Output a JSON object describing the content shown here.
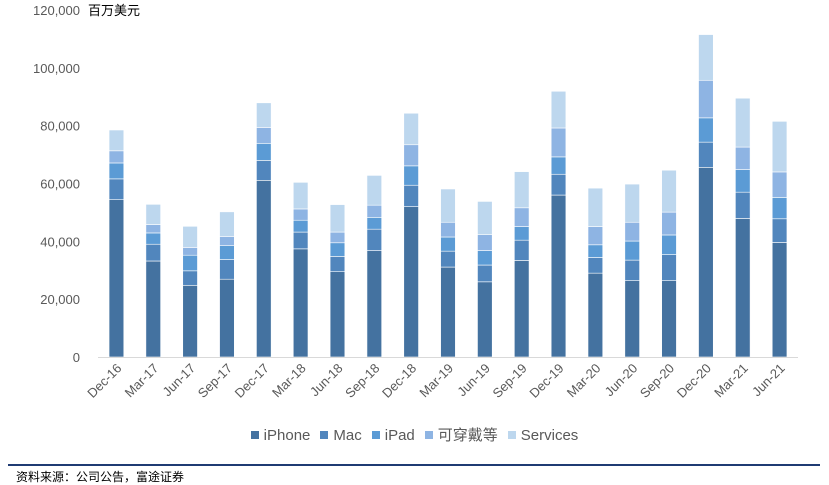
{
  "chart_data": {
    "type": "bar",
    "stacked": true,
    "unit": "百万美元",
    "categories": [
      "Dec-16",
      "Mar-17",
      "Jun-17",
      "Sep-17",
      "Dec-17",
      "Mar-18",
      "Jun-18",
      "Sep-18",
      "Dec-18",
      "Mar-19",
      "Jun-19",
      "Sep-19",
      "Dec-19",
      "Mar-20",
      "Jun-20",
      "Sep-20",
      "Dec-20",
      "Mar-21",
      "Jun-21"
    ],
    "series": [
      {
        "name": "iPhone",
        "color": "#4472a0",
        "values": [
          54400,
          33200,
          24800,
          26900,
          61100,
          37400,
          29500,
          36800,
          52000,
          31100,
          26000,
          33400,
          56000,
          29000,
          26400,
          26400,
          65600,
          47900,
          39600
        ]
      },
      {
        "name": "Mac",
        "color": "#5186bd",
        "values": [
          7200,
          5800,
          5000,
          6800,
          6900,
          5800,
          5300,
          7400,
          7400,
          5500,
          5800,
          7000,
          7200,
          5400,
          7100,
          9000,
          8700,
          9100,
          8200
        ]
      },
      {
        "name": "iPad",
        "color": "#5b9bd5",
        "values": [
          5500,
          3900,
          5400,
          4800,
          5900,
          4100,
          4700,
          4100,
          6700,
          4900,
          5000,
          4700,
          6000,
          4400,
          6600,
          6800,
          8400,
          7800,
          7400
        ]
      },
      {
        "name": "可穿戴等",
        "color": "#8eb4e3",
        "values": [
          4200,
          2900,
          2700,
          3200,
          5500,
          3900,
          3700,
          4200,
          7300,
          5100,
          5500,
          6500,
          10000,
          6300,
          6500,
          7900,
          13000,
          7800,
          8800
        ]
      },
      {
        "name": "Services",
        "color": "#bdd7ee",
        "values": [
          7200,
          7000,
          7300,
          8500,
          8500,
          9200,
          9500,
          10300,
          10900,
          11500,
          11500,
          12500,
          12700,
          13300,
          13200,
          14500,
          15800,
          16900,
          17500
        ]
      }
    ],
    "y_ticks": [
      "0",
      "20,000",
      "40,000",
      "60,000",
      "80,000",
      "100,000",
      "120,000"
    ],
    "ylim": [
      0,
      120000
    ],
    "grid": false,
    "legend_position": "bottom"
  },
  "source": "资料来源：公司公告，富途证券"
}
